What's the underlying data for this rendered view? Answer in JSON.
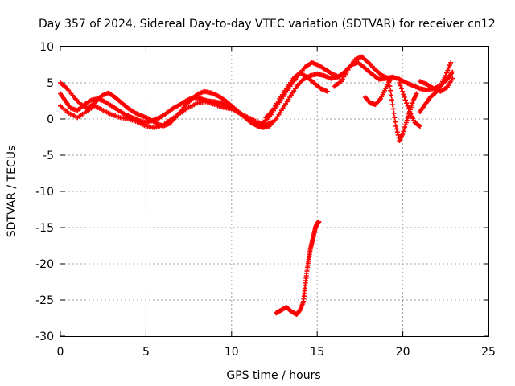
{
  "chart_data": {
    "type": "scatter",
    "title": "Day 357 of 2024, Sidereal Day-to-day VTEC variation (SDTVAR) for receiver cn12",
    "xlabel": "GPS time / hours",
    "ylabel": "SDTVAR / TECUs",
    "xlim": [
      0,
      25
    ],
    "ylim": [
      -30,
      10
    ],
    "xticks": [
      0,
      5,
      10,
      15,
      20,
      25
    ],
    "yticks": [
      -30,
      -25,
      -20,
      -15,
      -10,
      -5,
      0,
      5,
      10
    ],
    "grid": true,
    "marker": "+",
    "series": [
      {
        "name": "SDTVAR",
        "color": "#ff0000",
        "tracks": [
          {
            "x": [
              0.0,
              0.3,
              0.6,
              1.0,
              1.4,
              1.8,
              2.2,
              2.6,
              3.0,
              3.4,
              3.8,
              4.2,
              4.6,
              5.0,
              5.4,
              5.8,
              6.2,
              6.6,
              7.0,
              7.4,
              7.8,
              8.2,
              8.6,
              9.0,
              9.4,
              9.8,
              10.2,
              10.6,
              11.0,
              11.4,
              11.8,
              12.2,
              12.6,
              13.0,
              13.4,
              13.8,
              14.2,
              14.6,
              15.0,
              15.4,
              15.8,
              16.2,
              16.6,
              17.0,
              17.4,
              17.8,
              18.2,
              18.6,
              19.0,
              19.4,
              19.8,
              20.2,
              20.6,
              21.0,
              21.4,
              21.8,
              22.2,
              22.6,
              22.9
            ],
            "y": [
              3.5,
              2.5,
              1.5,
              1.2,
              2.0,
              2.6,
              2.8,
              2.4,
              1.8,
              1.2,
              0.6,
              0.2,
              -0.2,
              -0.5,
              -0.2,
              0.2,
              0.8,
              1.5,
              2.0,
              2.6,
              3.0,
              2.8,
              2.5,
              2.4,
              2.2,
              1.8,
              1.2,
              0.6,
              -0.2,
              -0.8,
              -1.2,
              -1.0,
              0.0,
              1.5,
              3.0,
              4.5,
              5.5,
              6.0,
              6.2,
              6.0,
              5.6,
              5.8,
              6.5,
              7.5,
              7.8,
              7.0,
              6.2,
              5.5,
              5.6,
              5.8,
              5.5,
              5.0,
              4.6,
              4.2,
              4.0,
              4.2,
              4.6,
              5.5,
              6.5
            ]
          },
          {
            "x": [
              0.0,
              0.4,
              0.8,
              1.2,
              1.6,
              2.0,
              2.4,
              2.8,
              3.2,
              3.6,
              4.0,
              4.4,
              4.8,
              5.2,
              5.6,
              6.0,
              6.4,
              6.8,
              7.2,
              7.6,
              8.0,
              8.4,
              8.8,
              9.2,
              9.6,
              10.0,
              10.4,
              10.8,
              11.2,
              11.6,
              12.0,
              12.4
            ],
            "y": [
              5.0,
              4.2,
              3.0,
              2.0,
              1.5,
              2.2,
              3.2,
              3.6,
              3.0,
              2.2,
              1.4,
              0.8,
              0.4,
              0.0,
              -0.6,
              -1.0,
              -0.6,
              0.4,
              1.6,
              2.6,
              3.4,
              3.8,
              3.6,
              3.2,
              2.6,
              1.8,
              1.0,
              0.2,
              -0.6,
              -1.0,
              -0.8,
              -0.4
            ]
          },
          {
            "x": [
              0.0,
              0.5,
              1.0,
              1.5,
              2.0,
              2.5,
              3.0,
              3.5,
              4.0,
              4.5,
              5.0,
              5.5,
              6.0,
              6.5,
              7.0,
              7.5,
              8.0,
              8.5,
              9.0,
              9.5,
              10.0,
              10.5,
              11.0,
              11.5,
              12.0
            ],
            "y": [
              1.8,
              0.8,
              0.2,
              1.0,
              1.8,
              1.2,
              0.6,
              0.2,
              0.0,
              -0.4,
              -1.0,
              -1.2,
              -0.8,
              0.0,
              0.8,
              1.6,
              2.2,
              2.4,
              2.0,
              1.6,
              1.4,
              0.8,
              0.2,
              -0.4,
              -0.8
            ]
          },
          {
            "x": [
              11.5,
              11.9,
              12.3,
              12.7,
              13.1,
              13.5,
              13.9,
              14.3,
              14.7,
              15.1,
              15.5,
              15.9,
              16.3
            ],
            "y": [
              -1.0,
              -0.4,
              0.6,
              2.0,
              3.4,
              4.8,
              6.0,
              7.2,
              7.8,
              7.4,
              6.8,
              6.2,
              5.8
            ]
          },
          {
            "x": [
              12.0,
              12.4,
              12.8,
              13.2,
              13.6,
              14.0,
              14.4,
              14.8,
              15.2,
              15.6
            ],
            "y": [
              0.2,
              1.2,
              2.8,
              4.2,
              5.6,
              6.4,
              5.8,
              5.0,
              4.2,
              3.8
            ]
          },
          {
            "x": [
              16.0,
              16.4,
              16.8,
              17.2,
              17.6,
              18.0,
              18.4,
              18.8,
              19.2
            ],
            "y": [
              4.5,
              5.2,
              6.8,
              8.2,
              8.6,
              7.8,
              6.8,
              6.0,
              5.6
            ]
          },
          {
            "x": [
              17.8,
              18.1,
              18.4,
              18.7,
              19.0,
              19.3
            ],
            "y": [
              3.0,
              2.2,
              2.0,
              2.8,
              4.2,
              5.6
            ]
          },
          {
            "x": [
              19.2,
              19.4,
              19.6,
              19.8,
              20.0,
              20.2,
              20.4,
              20.6,
              20.8
            ],
            "y": [
              5.2,
              2.0,
              -1.0,
              -3.0,
              -2.0,
              -0.5,
              1.0,
              2.5,
              3.5
            ]
          },
          {
            "x": [
              19.8,
              20.1,
              20.4,
              20.7,
              21.0
            ],
            "y": [
              5.0,
              3.0,
              1.0,
              -0.5,
              -1.0
            ]
          },
          {
            "x": [
              21.0,
              21.3,
              21.6,
              21.9,
              22.2,
              22.5,
              22.8
            ],
            "y": [
              1.0,
              2.0,
              3.0,
              3.6,
              4.6,
              6.0,
              7.8
            ]
          },
          {
            "x": [
              21.0,
              21.4,
              21.8,
              22.2,
              22.6,
              22.9
            ],
            "y": [
              5.2,
              4.8,
              4.2,
              3.8,
              4.4,
              5.6
            ]
          }
        ],
        "outlier_x": [
          12.6,
          12.9,
          13.2,
          13.5,
          13.8,
          14.0,
          14.2,
          14.3,
          14.4,
          14.5,
          14.6,
          14.7,
          14.8,
          14.9,
          15.0,
          15.1
        ],
        "outlier_y": [
          -26.8,
          -26.4,
          -26.0,
          -26.6,
          -27.0,
          -26.4,
          -25.2,
          -23.0,
          -21.0,
          -19.4,
          -18.0,
          -17.0,
          -16.0,
          -15.0,
          -14.4,
          -14.2
        ]
      }
    ]
  }
}
